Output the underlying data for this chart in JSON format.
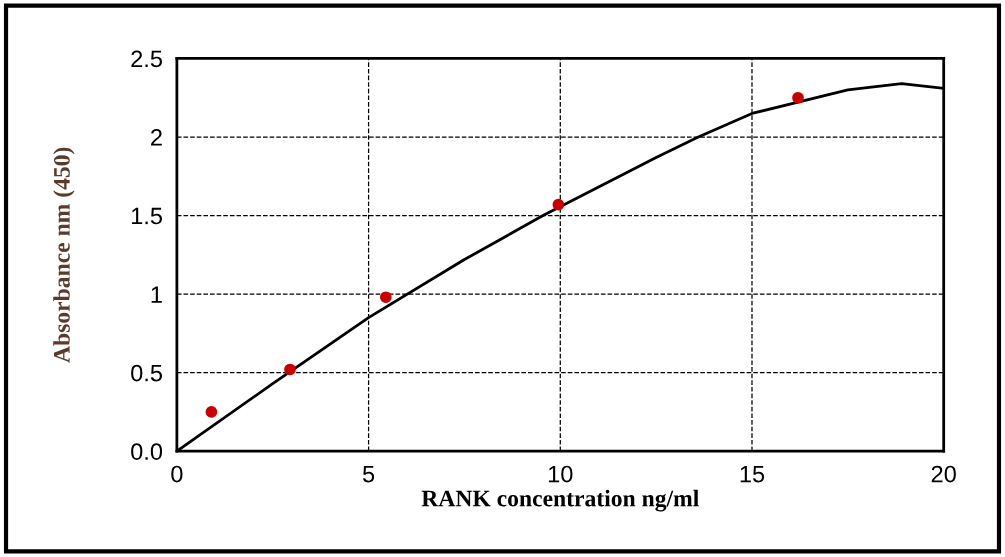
{
  "chart_data": {
    "type": "scatter",
    "xlabel": "RANK concentration ng/ml",
    "ylabel": "Absorbance nm (450)",
    "series": [
      {
        "color": "#cc0000",
        "x": [
          0.9,
          2.95,
          5.45,
          9.95,
          16.2
        ],
        "values": [
          0.25,
          0.52,
          0.98,
          1.57,
          2.25
        ],
        "marker": "circle"
      },
      {
        "type": "line",
        "color": "#000000",
        "x": [
          0,
          2.5,
          5,
          7.5,
          9.55,
          12.5,
          13.6,
          15,
          17.5,
          18.9,
          20
        ],
        "values": [
          0,
          0.43,
          0.85,
          1.22,
          1.5,
          1.87,
          2.0,
          2.15,
          2.3,
          2.34,
          2.31
        ],
        "marker": "none"
      }
    ],
    "xlim": [
      0,
      20
    ],
    "xticks": [
      0,
      5,
      10,
      15,
      20
    ],
    "ylim": [
      0,
      2.5
    ],
    "yticks": [
      {
        "value": 0,
        "label": "0.0"
      },
      0.5,
      1,
      1.5,
      2,
      2.5
    ],
    "grid": true
  }
}
